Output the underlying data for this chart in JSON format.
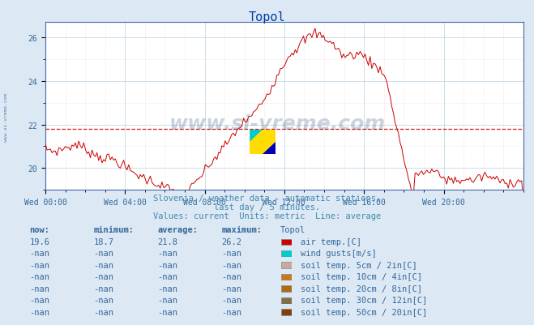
{
  "title": "Topol",
  "title_color": "#003da6",
  "bg_color": "#dce9f5",
  "plot_bg_color": "#ffffff",
  "grid_color_major": "#b8cfe0",
  "minor_grid_color": "#f0c8c8",
  "line_color": "#cc0000",
  "avg_line_color": "#cc0000",
  "avg_value": 21.8,
  "ylim": [
    19.0,
    26.7
  ],
  "yticks": [
    20,
    22,
    24,
    26
  ],
  "xtick_labels": [
    "Wed 00:00",
    "Wed 04:00",
    "Wed 08:00",
    "Wed 12:00",
    "Wed 16:00",
    "Wed 20:00"
  ],
  "tick_color": "#336699",
  "subtitle1": "Slovenia / weather data - automatic stations.",
  "subtitle2": "last day / 5 minutes.",
  "subtitle3": "Values: current  Units: metric  Line: average",
  "table_headers": [
    "now:",
    "minimum:",
    "average:",
    "maximum:",
    "Topol"
  ],
  "table_rows": [
    {
      "now": "19.6",
      "min": "18.7",
      "avg": "21.8",
      "max": "26.2",
      "color": "#cc0000",
      "label": "air temp.[C]"
    },
    {
      "now": "-nan",
      "min": "-nan",
      "avg": "-nan",
      "max": "-nan",
      "color": "#00cccc",
      "label": "wind gusts[m/s]"
    },
    {
      "now": "-nan",
      "min": "-nan",
      "avg": "-nan",
      "max": "-nan",
      "color": "#c8a8a0",
      "label": "soil temp. 5cm / 2in[C]"
    },
    {
      "now": "-nan",
      "min": "-nan",
      "avg": "-nan",
      "max": "-nan",
      "color": "#c87820",
      "label": "soil temp. 10cm / 4in[C]"
    },
    {
      "now": "-nan",
      "min": "-nan",
      "avg": "-nan",
      "max": "-nan",
      "color": "#b06818",
      "label": "soil temp. 20cm / 8in[C]"
    },
    {
      "now": "-nan",
      "min": "-nan",
      "avg": "-nan",
      "max": "-nan",
      "color": "#807048",
      "label": "soil temp. 30cm / 12in[C]"
    },
    {
      "now": "-nan",
      "min": "-nan",
      "avg": "-nan",
      "max": "-nan",
      "color": "#804010",
      "label": "soil temp. 50cm / 20in[C]"
    }
  ],
  "watermark": "www.si-vreme.com",
  "watermark_color": "#1a3a6a",
  "left_label": "www.si-vreme.com"
}
